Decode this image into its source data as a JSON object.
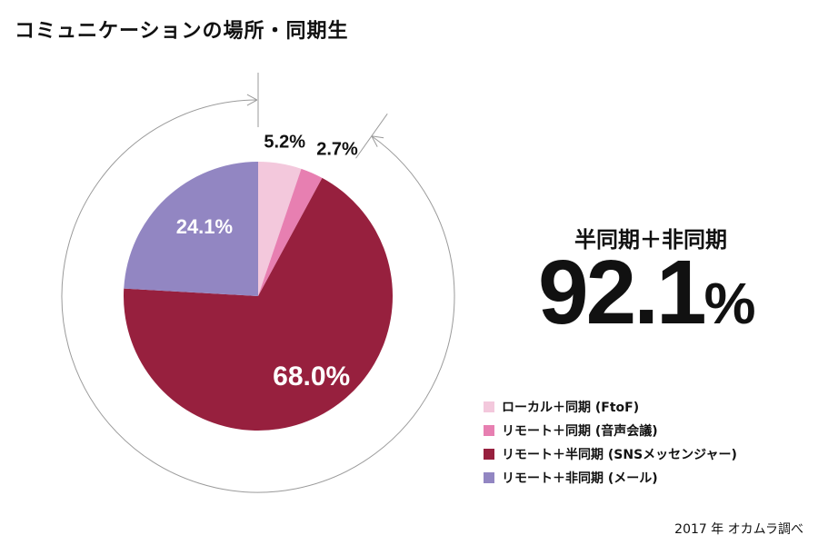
{
  "title": "コミュニケーションの場所・同期生",
  "summary": {
    "label": "半同期＋非同期",
    "value": "92.1",
    "unit": "%"
  },
  "source": "2017 年 オカムラ調べ",
  "colors": {
    "arrow": "#9a9a9a"
  },
  "chart_data": {
    "type": "pie",
    "slices": [
      {
        "name": "ローカル＋同期 (FtoF)",
        "label": "5.2%",
        "value": 5.2,
        "color": "#f3c8dc",
        "label_color": "#111111"
      },
      {
        "name": "リモート＋同期 (音声会議)",
        "label": "2.7%",
        "value": 2.7,
        "color": "#e77fb1",
        "label_color": "#111111"
      },
      {
        "name": "リモート＋半同期 (SNSメッセンジャー)",
        "label": "68.0%",
        "value": 68.0,
        "color": "#97203e",
        "label_color": "#ffffff"
      },
      {
        "name": "リモート＋非同期 (メール)",
        "label": "24.1%",
        "value": 24.1,
        "color": "#9286c2",
        "label_color": "#ffffff"
      }
    ],
    "legend_position": "bottom-right",
    "annotation": "arc arrow spanning the 92.1% of slices after the first two small slices"
  }
}
